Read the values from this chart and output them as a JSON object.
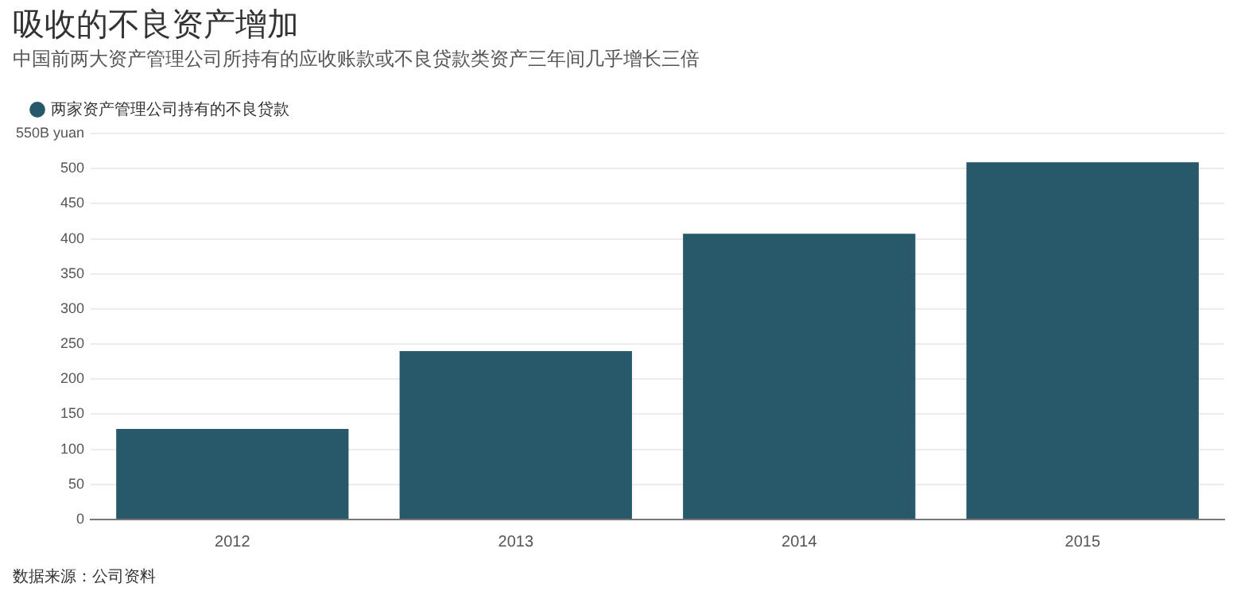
{
  "chart_data": {
    "type": "bar",
    "title": "吸收的不良资产增加",
    "subtitle": "中国前两大资产管理公司所持有的应收账款或不良贷款类资产三年间几乎增长三倍",
    "categories": [
      "2012",
      "2013",
      "2014",
      "2015"
    ],
    "series": [
      {
        "name": "两家资产管理公司持有的不良贷款",
        "color": "#27596b",
        "values": [
          129,
          240,
          407,
          509
        ]
      }
    ],
    "ylim": [
      0,
      550
    ],
    "yticks": [
      0,
      50,
      100,
      150,
      200,
      250,
      300,
      350,
      400,
      450,
      500,
      {
        "value": 550,
        "label": "550B yuan"
      }
    ],
    "grid": "y",
    "legend": "top left",
    "marker": "circle",
    "annotations": [
      "数据来源：公司资料"
    ]
  }
}
